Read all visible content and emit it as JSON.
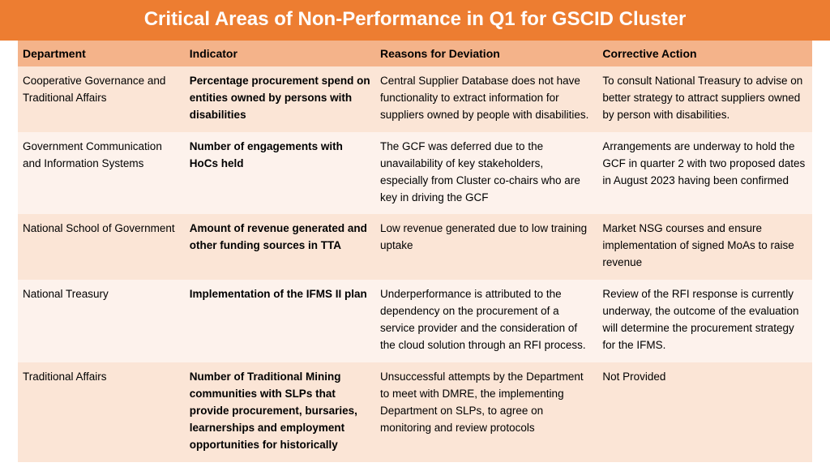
{
  "title": "Critical Areas of Non-Performance in Q1 for GSCID Cluster",
  "columns": [
    "Department",
    "Indicator",
    "Reasons for Deviation",
    "Corrective Action"
  ],
  "rows": [
    {
      "department": "Cooperative Governance and Traditional Affairs",
      "indicator": "Percentage procurement spend on entities owned by persons with disabilities",
      "reasons": "Central  Supplier Database does not have functionality to extract information for suppliers owned by people with disabilities.",
      "action": "To consult National Treasury to advise on better strategy to attract suppliers owned by person with disabilities."
    },
    {
      "department": "Government Communication and Information Systems",
      "indicator": "Number of engagements with HoCs held",
      "reasons": "The GCF was deferred due to the unavailability of key stakeholders, especially from Cluster co-chairs who are key in driving the GCF",
      "action": "Arrangements are underway to hold the GCF in quarter 2 with two proposed dates in August 2023 having been confirmed"
    },
    {
      "department": "National School of Government",
      "indicator": "Amount of revenue generated and other funding sources in TTA",
      "reasons": "Low revenue generated due to low training uptake",
      "action": "Market NSG courses and ensure implementation of signed MoAs to raise revenue"
    },
    {
      "department": "National Treasury",
      "indicator": "Implementation of the IFMS II plan",
      "reasons": "Underperformance is attributed to the dependency on the procurement of a service provider and the consideration of the cloud solution through an RFI process.",
      "action": "Review of the RFI response is currently underway, the outcome of the evaluation will determine the procurement strategy for the IFMS."
    },
    {
      "department": "Traditional Affairs",
      "indicator": "Number of Traditional Mining communities with SLPs that provide procurement, bursaries, learnerships and employment opportunities for historically",
      "reasons": "Unsuccessful attempts by the Department to meet with DMRE, the implementing Department on SLPs, to agree on monitoring and review protocols",
      "action": "Not Provided"
    }
  ]
}
